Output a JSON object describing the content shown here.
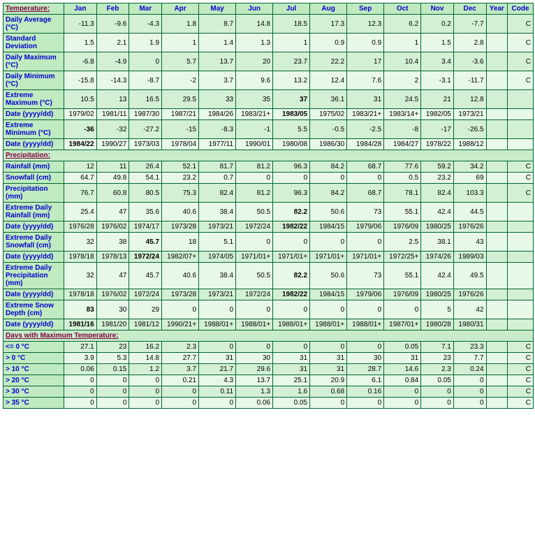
{
  "colors": {
    "table_bg": "#006633",
    "header_bg": "#c0eac0",
    "cell_bg": "#d4f0d4",
    "alt_bg": "#e8f8e8",
    "header_text": "#0000cc",
    "section_text": "#800040"
  },
  "columns": [
    "Jan",
    "Feb",
    "Mar",
    "Apr",
    "May",
    "Jun",
    "Jul",
    "Aug",
    "Sep",
    "Oct",
    "Nov",
    "Dec",
    "Year",
    "Code"
  ],
  "sections": [
    {
      "title": "Temperature:",
      "rows": [
        {
          "label": "Daily Average (°C)",
          "vals": [
            "-11.3",
            "-9.6",
            "-4.3",
            "1.8",
            "8.7",
            "14.8",
            "18.5",
            "17.3",
            "12.3",
            "6.2",
            "0.2",
            "-7.7",
            "",
            "C"
          ]
        },
        {
          "label": "Standard Deviation",
          "vals": [
            "1.5",
            "2.1",
            "1.9",
            "1",
            "1.4",
            "1.3",
            "1",
            "0.9",
            "0.9",
            "1",
            "1.5",
            "2.8",
            "",
            "C"
          ]
        },
        {
          "label": "Daily Maximum (°C)",
          "vals": [
            "-6.8",
            "-4.9",
            "0",
            "5.7",
            "13.7",
            "20",
            "23.7",
            "22.2",
            "17",
            "10.4",
            "3.4",
            "-3.6",
            "",
            "C"
          ]
        },
        {
          "label": "Daily Minimum (°C)",
          "vals": [
            "-15.8",
            "-14.3",
            "-8.7",
            "-2",
            "3.7",
            "9.6",
            "13.2",
            "12.4",
            "7.6",
            "2",
            "-3.1",
            "-11.7",
            "",
            "C"
          ]
        },
        {
          "label": "Extreme Maximum (°C)",
          "vals": [
            "10.5",
            "13",
            "16.5",
            "29.5",
            "33",
            "35",
            "37",
            "36.1",
            "31",
            "24.5",
            "21",
            "12.8",
            "",
            ""
          ],
          "bold": [
            6
          ]
        },
        {
          "label": "Date (yyyy/dd)",
          "vals": [
            "1979/02",
            "1981/11",
            "1987/30",
            "1987/21",
            "1984/26",
            "1983/21+",
            "1983/05",
            "1975/02",
            "1983/21+",
            "1983/14+",
            "1982/05",
            "1973/21",
            "",
            ""
          ],
          "bold": [
            6
          ]
        },
        {
          "label": "Extreme Minimum (°C)",
          "vals": [
            "-36",
            "-32",
            "-27.2",
            "-15",
            "-8.3",
            "-1",
            "5.5",
            "-0.5",
            "-2.5",
            "-8",
            "-17",
            "-26.5",
            "",
            ""
          ],
          "bold": [
            0
          ]
        },
        {
          "label": "Date (yyyy/dd)",
          "vals": [
            "1984/22",
            "1990/27",
            "1973/03",
            "1978/04",
            "1977/11",
            "1990/01",
            "1980/08",
            "1986/30",
            "1984/28",
            "1984/27",
            "1978/22",
            "1988/12",
            "",
            ""
          ],
          "bold": [
            0
          ]
        }
      ]
    },
    {
      "title": "Precipitation:",
      "rows": [
        {
          "label": "Rainfall (mm)",
          "vals": [
            "12",
            "11",
            "26.4",
            "52.1",
            "81.7",
            "81.2",
            "96.3",
            "84.2",
            "68.7",
            "77.6",
            "59.2",
            "34.2",
            "",
            "C"
          ]
        },
        {
          "label": "Snowfall (cm)",
          "vals": [
            "64.7",
            "49.8",
            "54.1",
            "23.2",
            "0.7",
            "0",
            "0",
            "0",
            "0",
            "0.5",
            "23.2",
            "69",
            "",
            "C"
          ]
        },
        {
          "label": "Precipitation (mm)",
          "vals": [
            "76.7",
            "60.8",
            "80.5",
            "75.3",
            "82.4",
            "81.2",
            "96.3",
            "84.2",
            "68.7",
            "78.1",
            "82.4",
            "103.3",
            "",
            "C"
          ]
        },
        {
          "label": "Extreme Daily Rainfall (mm)",
          "vals": [
            "25.4",
            "47",
            "35.6",
            "40.6",
            "38.4",
            "50.5",
            "82.2",
            "50.6",
            "73",
            "55.1",
            "42.4",
            "44.5",
            "",
            ""
          ],
          "bold": [
            6
          ]
        },
        {
          "label": "Date (yyyy/dd)",
          "vals": [
            "1976/28",
            "1976/02",
            "1974/17",
            "1973/28",
            "1973/21",
            "1972/24",
            "1982/22",
            "1984/15",
            "1979/06",
            "1976/09",
            "1980/25",
            "1976/26",
            "",
            ""
          ],
          "bold": [
            6
          ]
        },
        {
          "label": "Extreme Daily Snowfall (cm)",
          "vals": [
            "32",
            "38",
            "45.7",
            "18",
            "5.1",
            "0",
            "0",
            "0",
            "0",
            "2.5",
            "38.1",
            "43",
            "",
            ""
          ],
          "bold": [
            2
          ]
        },
        {
          "label": "Date (yyyy/dd)",
          "vals": [
            "1978/18",
            "1978/13",
            "1972/24",
            "1982/07+",
            "1974/05",
            "1971/01+",
            "1971/01+",
            "1971/01+",
            "1971/01+",
            "1972/25+",
            "1974/26",
            "1989/03",
            "",
            ""
          ],
          "bold": [
            2
          ]
        },
        {
          "label": "Extreme Daily Precipitation (mm)",
          "vals": [
            "32",
            "47",
            "45.7",
            "40.6",
            "38.4",
            "50.5",
            "82.2",
            "50.6",
            "73",
            "55.1",
            "42.4",
            "49.5",
            "",
            ""
          ],
          "bold": [
            6
          ]
        },
        {
          "label": "Date (yyyy/dd)",
          "vals": [
            "1978/18",
            "1976/02",
            "1972/24",
            "1973/28",
            "1973/21",
            "1972/24",
            "1982/22",
            "1984/15",
            "1979/06",
            "1976/09",
            "1980/25",
            "1976/26",
            "",
            ""
          ],
          "bold": [
            6
          ]
        },
        {
          "label": "Extreme Snow Depth (cm)",
          "vals": [
            "83",
            "30",
            "29",
            "0",
            "0",
            "0",
            "0",
            "0",
            "0",
            "0",
            "5",
            "42",
            "",
            ""
          ],
          "bold": [
            0
          ]
        },
        {
          "label": "Date (yyyy/dd)",
          "vals": [
            "1981/16",
            "1981/20",
            "1981/12",
            "1990/21+",
            "1988/01+",
            "1988/01+",
            "1988/01+",
            "1988/01+",
            "1988/01+",
            "1987/01+",
            "1980/28",
            "1980/31",
            "",
            ""
          ],
          "bold": [
            0
          ]
        }
      ]
    },
    {
      "title": "Days with Maximum Temperature:",
      "rows": [
        {
          "label": "<= 0 °C",
          "vals": [
            "27.1",
            "23",
            "16.2",
            "2.3",
            "0",
            "0",
            "0",
            "0",
            "0",
            "0.05",
            "7.1",
            "23.3",
            "",
            "C"
          ]
        },
        {
          "label": "> 0 °C",
          "vals": [
            "3.9",
            "5.3",
            "14.8",
            "27.7",
            "31",
            "30",
            "31",
            "31",
            "30",
            "31",
            "23",
            "7.7",
            "",
            "C"
          ]
        },
        {
          "label": "> 10 °C",
          "vals": [
            "0.06",
            "0.15",
            "1.2",
            "3.7",
            "21.7",
            "29.6",
            "31",
            "31",
            "28.7",
            "14.6",
            "2.3",
            "0.24",
            "",
            "C"
          ]
        },
        {
          "label": "> 20 °C",
          "vals": [
            "0",
            "0",
            "0",
            "0.21",
            "4.3",
            "13.7",
            "25.1",
            "20.9",
            "6.1",
            "0.84",
            "0.05",
            "0",
            "",
            "C"
          ]
        },
        {
          "label": "> 30 °C",
          "vals": [
            "0",
            "0",
            "0",
            "0",
            "0.11",
            "1.3",
            "1.6",
            "0.68",
            "0.16",
            "0",
            "0",
            "0",
            "",
            "C"
          ]
        },
        {
          "label": "> 35 °C",
          "vals": [
            "0",
            "0",
            "0",
            "0",
            "0",
            "0.06",
            "0.05",
            "0",
            "0",
            "0",
            "0",
            "0",
            "",
            "C"
          ]
        }
      ]
    }
  ]
}
